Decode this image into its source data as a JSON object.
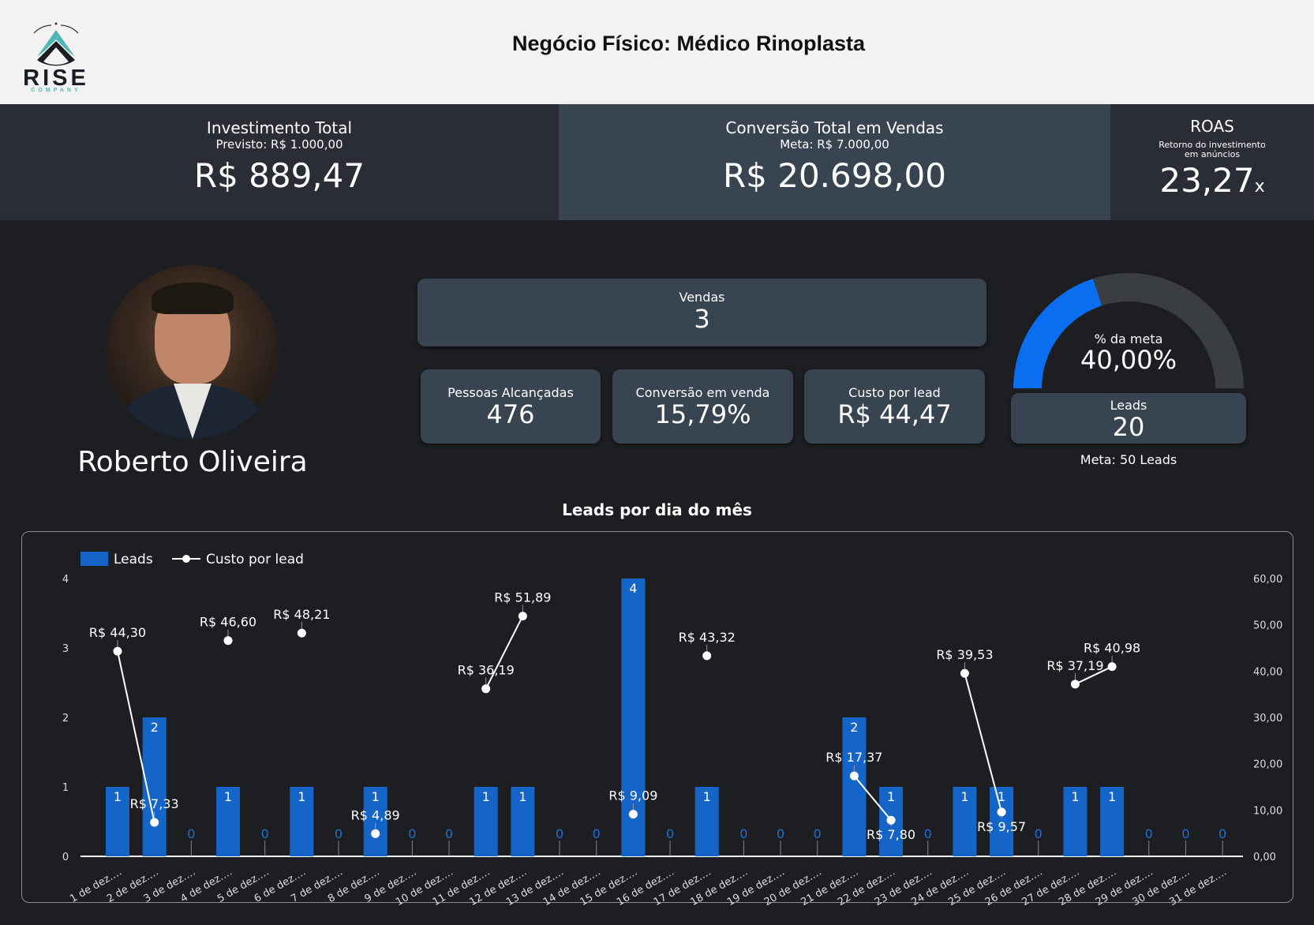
{
  "header": {
    "title": "Negócio Físico: Médico Rinoplasta",
    "logo": {
      "word": "RISE",
      "sub": "COMPANY"
    }
  },
  "kpis": {
    "investimento": {
      "title": "Investimento Total",
      "sub": "Previsto: R$ 1.000,00",
      "value": "R$ 889,47"
    },
    "conversao": {
      "title": "Conversão Total em Vendas",
      "sub": "Meta: R$ 7.000,00",
      "value": "R$ 20.698,00"
    },
    "roas": {
      "title": "ROAS",
      "sub1": "Retorno do investimento",
      "sub2": "em anúncios",
      "value": "23,27",
      "suffix": "x"
    }
  },
  "profile": {
    "name": "Roberto Oliveira"
  },
  "metrics": {
    "vendas": {
      "label": "Vendas",
      "value": "3"
    },
    "pessoas": {
      "label": "Pessoas Alcançadas",
      "value": "476"
    },
    "conv": {
      "label": "Conversão em venda",
      "value": "15,79%"
    },
    "cpl": {
      "label": "Custo por lead",
      "value": "R$ 44,47"
    }
  },
  "gauge": {
    "label": "% da meta",
    "value": "40,00%",
    "fraction": 0.4,
    "leads_label": "Leads",
    "leads": "20",
    "meta": "Meta: 50 Leads",
    "colors": {
      "fill": "#0a6ef0",
      "track": "#3a3d42"
    }
  },
  "chart_data": {
    "type": "bar+line",
    "title": "Leads por dia do mês",
    "categories": [
      "1 de dez.…",
      "2 de dez.…",
      "3 de dez.…",
      "4 de dez.…",
      "5 de dez.…",
      "6 de dez.…",
      "7 de dez.…",
      "8 de dez.…",
      "9 de dez.…",
      "10 de dez.…",
      "11 de dez.…",
      "12 de dez.…",
      "13 de dez.…",
      "14 de dez.…",
      "15 de dez.…",
      "16 de dez.…",
      "17 de dez.…",
      "18 de dez.…",
      "19 de dez.…",
      "20 de dez.…",
      "21 de dez.…",
      "22 de dez.…",
      "23 de dez.…",
      "24 de dez.…",
      "25 de dez.…",
      "26 de dez.…",
      "27 de dez.…",
      "28 de dez.…",
      "29 de dez.…",
      "30 de dez.…",
      "31 de dez.…"
    ],
    "series": [
      {
        "name": "Leads",
        "type": "bar",
        "axis": "left",
        "color": "#1565c8",
        "values": [
          1,
          2,
          0,
          1,
          0,
          1,
          0,
          1,
          0,
          0,
          1,
          1,
          0,
          0,
          4,
          0,
          1,
          0,
          0,
          0,
          2,
          1,
          0,
          1,
          1,
          0,
          1,
          1,
          0,
          0,
          0
        ]
      },
      {
        "name": "Custo por lead",
        "type": "line",
        "axis": "right",
        "color": "#ffffff",
        "values": [
          44.3,
          7.33,
          null,
          46.6,
          null,
          48.21,
          null,
          4.89,
          null,
          null,
          36.19,
          51.89,
          null,
          null,
          9.09,
          null,
          43.32,
          null,
          null,
          null,
          17.37,
          7.8,
          null,
          39.53,
          9.57,
          null,
          37.19,
          40.98,
          null,
          null,
          null
        ],
        "labels": [
          "R$ 44,30",
          "R$ 7,33",
          null,
          "R$ 46,60",
          null,
          "R$ 48,21",
          null,
          "R$ 4,89",
          null,
          null,
          "R$ 36,19",
          "R$ 51,89",
          null,
          null,
          "R$ 9,09",
          null,
          "R$ 43,32",
          null,
          null,
          null,
          "R$ 17,37",
          "R$ 7,80",
          null,
          "R$ 39,53",
          "R$ 9,57",
          null,
          "R$ 37,19",
          "R$ 40,98",
          null,
          null,
          null
        ]
      }
    ],
    "left_axis": {
      "range": [
        0,
        4
      ],
      "ticks": [
        "0",
        "1",
        "2",
        "3",
        "4"
      ]
    },
    "right_axis": {
      "range": [
        0,
        60
      ],
      "ticks": [
        "0,00",
        "10,00",
        "20,00",
        "30,00",
        "40,00",
        "50,00",
        "60,00"
      ]
    },
    "legend": "top-left",
    "grid": false
  }
}
